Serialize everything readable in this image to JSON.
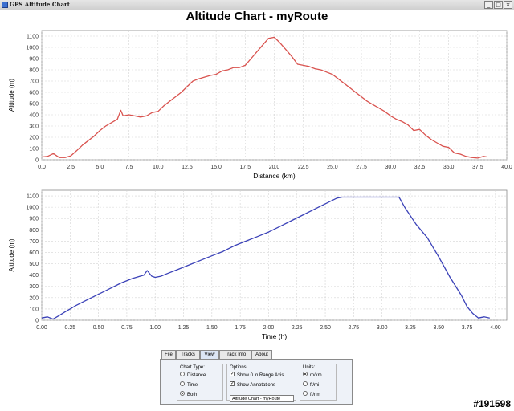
{
  "window": {
    "title": "GPS Altitude Chart",
    "buttons": {
      "minimize": "_",
      "maximize": "□",
      "close": "×"
    }
  },
  "chart_title": "Altitude Chart - myRoute",
  "chart_data": [
    {
      "type": "line",
      "xlabel": "Distance (km)",
      "ylabel": "Altitude (m)",
      "xlim": [
        0,
        40
      ],
      "ylim": [
        0,
        1150
      ],
      "xticks": [
        "0.0",
        "2.5",
        "5.0",
        "7.5",
        "10.0",
        "12.5",
        "15.0",
        "17.5",
        "20.0",
        "22.5",
        "25.0",
        "27.5",
        "30.0",
        "32.5",
        "35.0",
        "37.5",
        "40.0"
      ],
      "yticks": [
        "0",
        "100",
        "200",
        "300",
        "400",
        "500",
        "600",
        "700",
        "800",
        "900",
        "1000",
        "1100"
      ],
      "grid": true,
      "color": "#d9534f",
      "x": [
        0,
        0.5,
        1.0,
        1.5,
        2.0,
        2.5,
        3.0,
        3.5,
        4.0,
        4.5,
        5.0,
        5.5,
        6.0,
        6.5,
        6.8,
        7.0,
        7.5,
        8.0,
        8.5,
        9.0,
        9.5,
        10.0,
        10.5,
        11.0,
        11.5,
        12.0,
        12.5,
        13.0,
        13.5,
        14.0,
        14.5,
        15.0,
        15.5,
        16.0,
        16.5,
        17.0,
        17.5,
        18.0,
        18.5,
        19.0,
        19.5,
        20.0,
        20.5,
        21.0,
        21.5,
        22.0,
        22.5,
        23.0,
        23.5,
        24.0,
        24.5,
        25.0,
        25.5,
        26.0,
        26.5,
        27.0,
        27.5,
        28.0,
        28.5,
        29.0,
        29.5,
        30.0,
        30.5,
        31.0,
        31.5,
        32.0,
        32.5,
        33.0,
        33.5,
        34.0,
        34.5,
        35.0,
        35.5,
        36.0,
        36.5,
        37.0,
        37.5,
        38.0,
        38.3
      ],
      "values": [
        25,
        30,
        55,
        20,
        20,
        35,
        80,
        130,
        170,
        210,
        260,
        300,
        330,
        360,
        440,
        390,
        400,
        390,
        380,
        390,
        420,
        430,
        480,
        520,
        560,
        600,
        650,
        700,
        720,
        735,
        750,
        760,
        790,
        800,
        820,
        820,
        840,
        900,
        960,
        1020,
        1080,
        1090,
        1040,
        980,
        920,
        850,
        840,
        830,
        810,
        800,
        780,
        760,
        720,
        680,
        640,
        600,
        560,
        520,
        490,
        460,
        430,
        390,
        360,
        340,
        310,
        260,
        270,
        220,
        180,
        150,
        120,
        110,
        60,
        50,
        30,
        20,
        15,
        30,
        25
      ]
    },
    {
      "type": "line",
      "xlabel": "Time (h)",
      "ylabel": "Altitude (m)",
      "xlim": [
        0,
        4.1
      ],
      "ylim": [
        0,
        1150
      ],
      "xticks": [
        "0.00",
        "0.25",
        "0.50",
        "0.75",
        "1.00",
        "1.25",
        "1.50",
        "1.75",
        "2.00",
        "2.25",
        "2.50",
        "2.75",
        "3.00",
        "3.25",
        "3.50",
        "3.75",
        "4.00"
      ],
      "yticks": [
        "0",
        "100",
        "200",
        "300",
        "400",
        "500",
        "600",
        "700",
        "800",
        "900",
        "1000",
        "1100"
      ],
      "grid": true,
      "color": "#3b42b8",
      "x": [
        0,
        0.05,
        0.1,
        0.15,
        0.2,
        0.3,
        0.4,
        0.5,
        0.6,
        0.7,
        0.8,
        0.9,
        0.93,
        0.97,
        1.0,
        1.05,
        1.1,
        1.2,
        1.3,
        1.4,
        1.5,
        1.6,
        1.7,
        1.8,
        1.9,
        2.0,
        2.1,
        2.2,
        2.3,
        2.4,
        2.5,
        2.6,
        2.65,
        2.8,
        3.0,
        3.15,
        3.2,
        3.3,
        3.4,
        3.5,
        3.6,
        3.7,
        3.75,
        3.8,
        3.85,
        3.9,
        3.95
      ],
      "values": [
        20,
        30,
        10,
        40,
        70,
        130,
        180,
        230,
        280,
        330,
        370,
        400,
        440,
        390,
        380,
        390,
        410,
        450,
        490,
        530,
        570,
        610,
        660,
        700,
        740,
        780,
        830,
        880,
        930,
        980,
        1030,
        1080,
        1090,
        1090,
        1090,
        1090,
        1000,
        850,
        730,
        560,
        380,
        220,
        120,
        60,
        20,
        30,
        20
      ]
    }
  ],
  "tabs": [
    "File",
    "Tracks",
    "View",
    "Track Info",
    "About"
  ],
  "active_tab": "View",
  "view_panel": {
    "chart_type": {
      "title": "Chart Type:",
      "options": [
        "Distance",
        "Time",
        "Both"
      ],
      "selected": "Both"
    },
    "options": {
      "title": "Options:",
      "show_zero": "Show 0 in Range Axis",
      "show_annotations": "Show Annotations",
      "show_zero_checked": true,
      "show_annotations_checked": true,
      "title_field_value": "Altitude Chart - myRoute"
    },
    "units": {
      "title": "Units:",
      "options": [
        "m/km",
        "ft/mi",
        "ft/nm"
      ],
      "selected": "m/km"
    }
  },
  "watermark": "#191598"
}
